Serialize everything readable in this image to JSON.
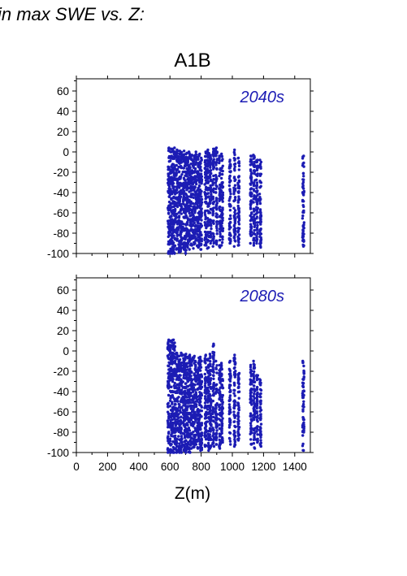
{
  "header": {
    "text": "in max SWE vs. Z:"
  },
  "chart_data": [
    {
      "type": "scatter",
      "title": "A1B",
      "panel_label": "2040s",
      "xlabel": "",
      "ylabel": "",
      "xlim": [
        0,
        1500
      ],
      "ylim": [
        -100,
        72
      ],
      "y_ticks": [
        -100,
        -80,
        -60,
        -40,
        -20,
        0,
        20,
        40,
        60
      ],
      "x_ticks": [
        0,
        200,
        400,
        600,
        800,
        1000,
        1200,
        1400
      ],
      "x_tick_labels_shown": false,
      "color": "#1c1cb4",
      "series": [
        {
          "values": [
            {
              "x": 592,
              "y_range": [
                -100,
                4
              ]
            },
            {
              "x": 605,
              "y_range": [
                -100,
                3
              ]
            },
            {
              "x": 618,
              "y_range": [
                -100,
                3
              ]
            },
            {
              "x": 630,
              "y_range": [
                -100,
                4
              ]
            },
            {
              "x": 645,
              "y_range": [
                -96,
                2
              ]
            },
            {
              "x": 660,
              "y_range": [
                -99,
                1
              ]
            },
            {
              "x": 672,
              "y_range": [
                -98,
                0
              ]
            },
            {
              "x": 688,
              "y_range": [
                -96,
                1
              ]
            },
            {
              "x": 700,
              "y_range": [
                -100,
                -2
              ]
            },
            {
              "x": 712,
              "y_range": [
                -94,
                -1
              ]
            },
            {
              "x": 725,
              "y_range": [
                -96,
                0
              ]
            },
            {
              "x": 738,
              "y_range": [
                -92,
                -3
              ]
            },
            {
              "x": 752,
              "y_range": [
                -95,
                -4
              ]
            },
            {
              "x": 765,
              "y_range": [
                -90,
                0
              ]
            },
            {
              "x": 778,
              "y_range": [
                -94,
                -5
              ]
            },
            {
              "x": 790,
              "y_range": [
                -93,
                -2
              ]
            },
            {
              "x": 800,
              "y_range": [
                -96,
                -6
              ]
            },
            {
              "x": 828,
              "y_range": [
                -92,
                0
              ]
            },
            {
              "x": 845,
              "y_range": [
                -95,
                2
              ]
            },
            {
              "x": 860,
              "y_range": [
                -90,
                -3
              ]
            },
            {
              "x": 878,
              "y_range": [
                -93,
                3
              ]
            },
            {
              "x": 898,
              "y_range": [
                -91,
                4
              ]
            },
            {
              "x": 920,
              "y_range": [
                -94,
                -4
              ]
            },
            {
              "x": 935,
              "y_range": [
                -92,
                -2
              ]
            },
            {
              "x": 985,
              "y_range": [
                -90,
                -8
              ]
            },
            {
              "x": 1015,
              "y_range": [
                -93,
                2
              ]
            },
            {
              "x": 1040,
              "y_range": [
                -92,
                -6
              ]
            },
            {
              "x": 1120,
              "y_range": [
                -90,
                -4
              ]
            },
            {
              "x": 1140,
              "y_range": [
                -92,
                -3
              ]
            },
            {
              "x": 1158,
              "y_range": [
                -90,
                -8
              ]
            },
            {
              "x": 1180,
              "y_range": [
                -94,
                -8
              ]
            },
            {
              "x": 1455,
              "y_range": [
                -93,
                -4
              ]
            }
          ]
        }
      ]
    },
    {
      "type": "scatter",
      "title": "",
      "panel_label": "2080s",
      "xlabel": "Z(m)",
      "ylabel": "",
      "xlim": [
        0,
        1500
      ],
      "ylim": [
        -100,
        72
      ],
      "y_ticks": [
        -100,
        -80,
        -60,
        -40,
        -20,
        0,
        20,
        40,
        60
      ],
      "x_ticks": [
        0,
        200,
        400,
        600,
        800,
        1000,
        1200,
        1400
      ],
      "x_tick_labels_shown": true,
      "color": "#1c1cb4",
      "series": [
        {
          "values": [
            {
              "x": 590,
              "y_range": [
                -100,
                11
              ]
            },
            {
              "x": 605,
              "y_range": [
                -100,
                10
              ]
            },
            {
              "x": 618,
              "y_range": [
                -100,
                11
              ]
            },
            {
              "x": 632,
              "y_range": [
                -100,
                8
              ]
            },
            {
              "x": 645,
              "y_range": [
                -100,
                -2
              ]
            },
            {
              "x": 660,
              "y_range": [
                -100,
                -5
              ]
            },
            {
              "x": 672,
              "y_range": [
                -100,
                -2
              ]
            },
            {
              "x": 688,
              "y_range": [
                -98,
                -4
              ]
            },
            {
              "x": 700,
              "y_range": [
                -100,
                -3
              ]
            },
            {
              "x": 712,
              "y_range": [
                -96,
                -6
              ]
            },
            {
              "x": 725,
              "y_range": [
                -100,
                -4
              ]
            },
            {
              "x": 738,
              "y_range": [
                -96,
                -8
              ]
            },
            {
              "x": 752,
              "y_range": [
                -95,
                -5
              ]
            },
            {
              "x": 765,
              "y_range": [
                -92,
                -10
              ]
            },
            {
              "x": 778,
              "y_range": [
                -96,
                -12
              ]
            },
            {
              "x": 790,
              "y_range": [
                -95,
                -6
              ]
            },
            {
              "x": 800,
              "y_range": [
                -98,
                -10
              ]
            },
            {
              "x": 828,
              "y_range": [
                -94,
                -4
              ]
            },
            {
              "x": 845,
              "y_range": [
                -98,
                -8
              ]
            },
            {
              "x": 860,
              "y_range": [
                -96,
                -3
              ]
            },
            {
              "x": 878,
              "y_range": [
                -94,
                7
              ]
            },
            {
              "x": 898,
              "y_range": [
                -92,
                -10
              ]
            },
            {
              "x": 920,
              "y_range": [
                -96,
                -14
              ]
            },
            {
              "x": 935,
              "y_range": [
                -90,
                -12
              ]
            },
            {
              "x": 985,
              "y_range": [
                -92,
                -10
              ]
            },
            {
              "x": 1015,
              "y_range": [
                -94,
                -4
              ]
            },
            {
              "x": 1040,
              "y_range": [
                -88,
                -22
              ]
            },
            {
              "x": 1120,
              "y_range": [
                -92,
                -14
              ]
            },
            {
              "x": 1140,
              "y_range": [
                -96,
                -10
              ]
            },
            {
              "x": 1158,
              "y_range": [
                -90,
                -24
              ]
            },
            {
              "x": 1180,
              "y_range": [
                -94,
                -28
              ]
            },
            {
              "x": 1455,
              "y_range": [
                -98,
                -10
              ]
            }
          ]
        }
      ]
    }
  ]
}
